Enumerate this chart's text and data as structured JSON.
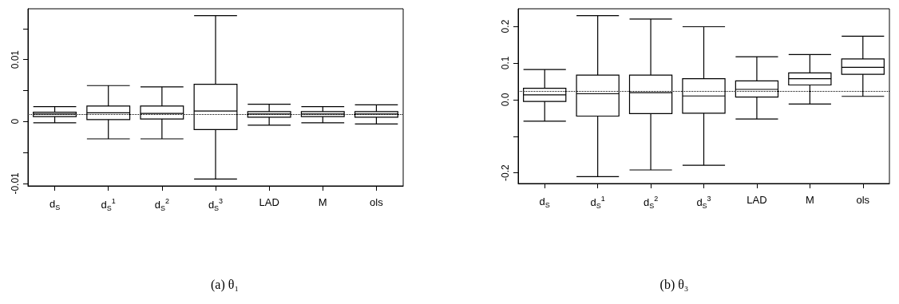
{
  "chart_data": [
    {
      "type": "box",
      "title": "(a) θ₁",
      "categories": [
        "d$_{S}$",
        "d$_{S}$$^{1}$",
        "d$_{S}$$^{2}$",
        "d$_{S}$$^{3}$",
        "LAD",
        "M",
        "ols"
      ],
      "boxes": [
        {
          "low": -0.0002,
          "q1": 0.0008,
          "median": 0.0012,
          "q3": 0.0015,
          "high": 0.0024
        },
        {
          "low": -0.0028,
          "q1": 0.0003,
          "median": 0.0014,
          "q3": 0.0025,
          "high": 0.0058
        },
        {
          "low": -0.0028,
          "q1": 0.0004,
          "median": 0.0013,
          "q3": 0.0025,
          "high": 0.0056
        },
        {
          "low": -0.0093,
          "q1": -0.0013,
          "median": 0.0017,
          "q3": 0.006,
          "high": 0.0171
        },
        {
          "low": -0.0006,
          "q1": 0.0007,
          "median": 0.0012,
          "q3": 0.0016,
          "high": 0.0028
        },
        {
          "low": -0.0002,
          "q1": 0.0008,
          "median": 0.0012,
          "q3": 0.0016,
          "high": 0.0024
        },
        {
          "low": -0.0004,
          "q1": 0.0007,
          "median": 0.0012,
          "q3": 0.0016,
          "high": 0.0027
        }
      ],
      "ylim": [
        -0.0104,
        0.0182
      ],
      "yticks": [
        {
          "value": 0.015,
          "label": null
        },
        0.01,
        {
          "value": 0.005,
          "label": null
        },
        0,
        {
          "value": -0.005,
          "label": null
        },
        -0.01
      ],
      "ref_lines": [
        {
          "axis": "y",
          "value": 0.0012,
          "line_style": "dotted"
        }
      ]
    },
    {
      "type": "box",
      "title": "(b) θ₃",
      "categories": [
        "d$_{S}$",
        "d$_{S}$$^{1}$",
        "d$_{S}$$^{2}$",
        "d$_{S}$$^{3}$",
        "LAD",
        "M",
        "ols"
      ],
      "boxes": [
        {
          "low": -0.059,
          "q1": -0.005,
          "median": 0.013,
          "q3": 0.031,
          "high": 0.082
        },
        {
          "low": -0.21,
          "q1": -0.045,
          "median": 0.016,
          "q3": 0.067,
          "high": 0.229
        },
        {
          "low": -0.192,
          "q1": -0.038,
          "median": 0.019,
          "q3": 0.067,
          "high": 0.22
        },
        {
          "low": -0.179,
          "q1": -0.037,
          "median": 0.01,
          "q3": 0.057,
          "high": 0.199
        },
        {
          "low": -0.053,
          "q1": 0.007,
          "median": 0.028,
          "q3": 0.051,
          "high": 0.117
        },
        {
          "low": -0.012,
          "q1": 0.04,
          "median": 0.057,
          "q3": 0.073,
          "high": 0.123
        },
        {
          "low": 0.009,
          "q1": 0.069,
          "median": 0.088,
          "q3": 0.111,
          "high": 0.173
        }
      ],
      "ylim": [
        -0.229,
        0.248
      ],
      "yticks": [
        0.2,
        0.1,
        {
          "value": 0,
          "label": "0.0"
        },
        {
          "value": -0.1,
          "label": null
        },
        -0.2
      ],
      "ref_lines": [
        {
          "axis": "y",
          "value": 0.023,
          "line_style": "dotted"
        }
      ]
    }
  ]
}
